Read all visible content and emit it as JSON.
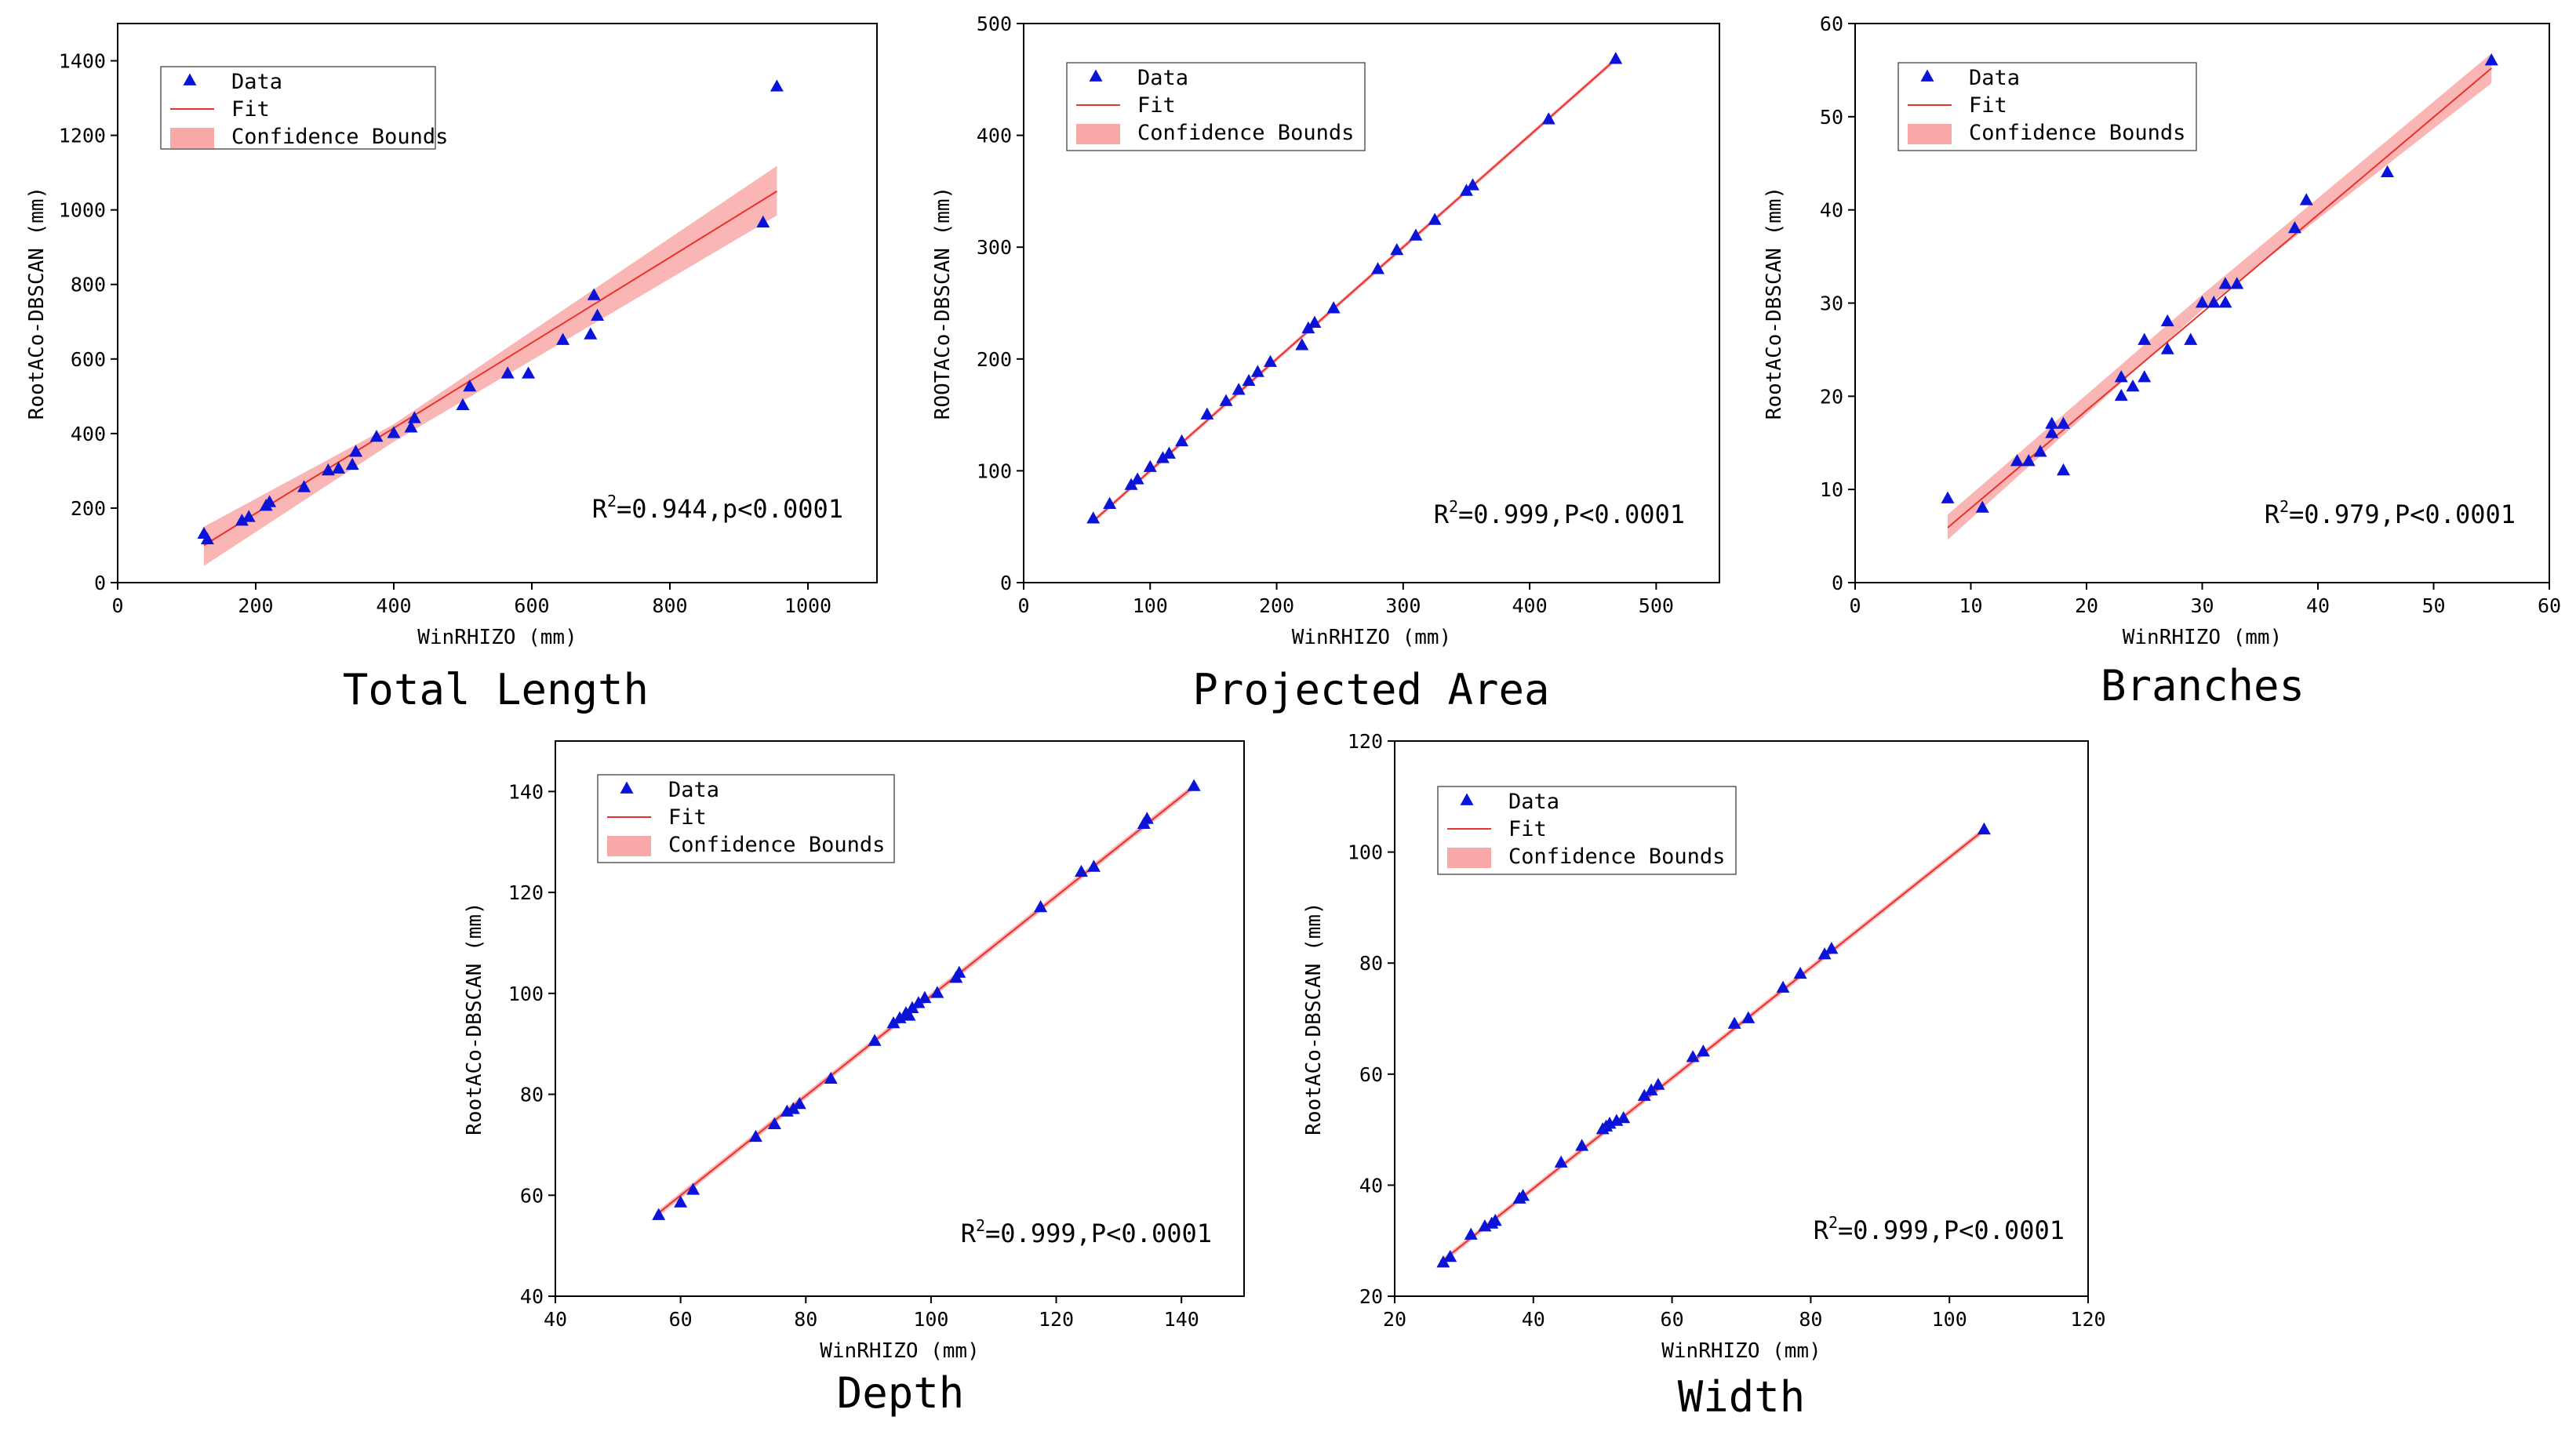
{
  "colors": {
    "marker": "#0a14d8",
    "fit": "#e8322e",
    "band": "#f9a8a8",
    "axis": "#000000"
  },
  "legend": {
    "data": "Data",
    "fit": "Fit",
    "bounds": "Confidence Bounds"
  },
  "chart_data": [
    {
      "type": "scatter",
      "title": "Total Length",
      "xlabel": "WinRHIZO (mm)",
      "ylabel": "RootACo-DBSCAN (mm)",
      "xlim": [
        0,
        1100
      ],
      "ylim": [
        0,
        1500
      ],
      "xticks": [
        0,
        200,
        400,
        600,
        800,
        1000
      ],
      "yticks": [
        0,
        200,
        400,
        600,
        800,
        1000,
        1200,
        1400
      ],
      "stat": {
        "prefix": "R",
        "sup": "2",
        "rest": "=0.944,p<0.0001"
      },
      "fit": {
        "x": [
          125,
          955
        ],
        "y": [
          100,
          1050
        ]
      },
      "band": {
        "x": [
          125,
          400,
          955
        ],
        "upper": [
          150,
          425,
          1118
        ],
        "lower": [
          45,
          378,
          985
        ]
      },
      "x": [
        125,
        130,
        180,
        190,
        215,
        220,
        270,
        305,
        320,
        340,
        345,
        375,
        400,
        425,
        430,
        500,
        510,
        565,
        595,
        645,
        685,
        690,
        695,
        935,
        955
      ],
      "y": [
        130,
        115,
        165,
        175,
        205,
        215,
        255,
        300,
        305,
        315,
        350,
        390,
        400,
        415,
        440,
        475,
        525,
        560,
        560,
        650,
        665,
        770,
        715,
        965,
        1330
      ]
    },
    {
      "type": "scatter",
      "title": "Projected Area",
      "xlabel": "WinRHIZO (mm)",
      "ylabel": "ROOTACo-DBSCAN (mm)",
      "xlim": [
        0,
        550
      ],
      "ylim": [
        0,
        500
      ],
      "xticks": [
        0,
        100,
        200,
        300,
        400,
        500
      ],
      "yticks": [
        0,
        100,
        200,
        300,
        400,
        500
      ],
      "stat": {
        "prefix": "R",
        "sup": "2",
        "rest": "=0.999,P<0.0001"
      },
      "fit": {
        "x": [
          55,
          468
        ],
        "y": [
          55,
          468
        ]
      },
      "band": {
        "x": [
          55,
          468
        ],
        "upper": [
          57,
          470
        ],
        "lower": [
          53,
          466
        ]
      },
      "x": [
        55,
        68,
        85,
        90,
        100,
        110,
        115,
        125,
        145,
        160,
        170,
        178,
        185,
        195,
        220,
        225,
        230,
        245,
        280,
        295,
        310,
        325,
        350,
        355,
        415,
        468
      ],
      "y": [
        57,
        70,
        87,
        92,
        103,
        111,
        115,
        126,
        150,
        162,
        172,
        180,
        188,
        197,
        212,
        227,
        232,
        245,
        280,
        297,
        310,
        324,
        350,
        355,
        414,
        468
      ]
    },
    {
      "type": "scatter",
      "title": "Branches",
      "xlabel": "WinRHIZO (mm)",
      "ylabel": "RootACo-DBSCAN (mm)",
      "xlim": [
        0,
        60
      ],
      "ylim": [
        0,
        60
      ],
      "xticks": [
        0,
        10,
        20,
        30,
        40,
        50,
        60
      ],
      "yticks": [
        0,
        10,
        20,
        30,
        40,
        50,
        60
      ],
      "stat": {
        "prefix": "R",
        "sup": "2",
        "rest": "=0.979,P<0.0001"
      },
      "fit": {
        "x": [
          8,
          55
        ],
        "y": [
          5.9,
          55.2
        ]
      },
      "band": {
        "x": [
          8,
          30,
          55
        ],
        "upper": [
          7.3,
          30.9,
          56.8
        ],
        "lower": [
          4.6,
          29.3,
          53.6
        ]
      },
      "x": [
        8,
        11,
        14,
        15,
        16,
        17,
        17,
        18,
        18,
        23,
        23,
        24,
        25,
        25,
        27,
        27,
        29,
        30,
        31,
        32,
        32,
        33,
        38,
        39,
        46,
        55
      ],
      "y": [
        9,
        8,
        13,
        13,
        14,
        16,
        17,
        17,
        12,
        20,
        22,
        21,
        22,
        26,
        25,
        28,
        26,
        30,
        30,
        30,
        32,
        32,
        38,
        41,
        44,
        56
      ]
    },
    {
      "type": "scatter",
      "title": "Depth",
      "xlabel": "WinRHIZO (mm)",
      "ylabel": "RootACo-DBSCAN (mm)",
      "xlim": [
        40,
        150
      ],
      "ylim": [
        40,
        150
      ],
      "xticks": [
        40,
        60,
        80,
        100,
        120,
        140
      ],
      "yticks": [
        40,
        60,
        80,
        100,
        120,
        140
      ],
      "stat": {
        "prefix": "R",
        "sup": "2",
        "rest": "=0.999,P<0.0001"
      },
      "fit": {
        "x": [
          56,
          142
        ],
        "y": [
          56,
          141
        ]
      },
      "band": {
        "x": [
          56,
          142
        ],
        "upper": [
          56.6,
          141.6
        ],
        "lower": [
          55.4,
          140.4
        ]
      },
      "x": [
        56.5,
        60,
        62,
        72,
        75,
        77,
        78,
        79,
        84,
        91,
        94,
        95,
        96,
        96.5,
        97,
        98,
        99,
        101,
        104,
        104.5,
        117.5,
        124,
        126,
        134,
        134.5,
        142
      ],
      "y": [
        56,
        58.5,
        61,
        71.5,
        74,
        76.5,
        77,
        78,
        83,
        90.5,
        94,
        95,
        96,
        95.5,
        97,
        98,
        99,
        100,
        103,
        104,
        117,
        124,
        125,
        133.5,
        134.5,
        141
      ]
    },
    {
      "type": "scatter",
      "title": "Width",
      "xlabel": "WinRHIZO (mm)",
      "ylabel": "RootACo-DBSCAN (mm)",
      "xlim": [
        20,
        120
      ],
      "ylim": [
        20,
        120
      ],
      "xticks": [
        20,
        40,
        60,
        80,
        100,
        120
      ],
      "yticks": [
        20,
        40,
        60,
        80,
        100,
        120
      ],
      "stat": {
        "prefix": "R",
        "sup": "2",
        "rest": "=0.999,P<0.0001"
      },
      "fit": {
        "x": [
          26.5,
          105
        ],
        "y": [
          26,
          104
        ]
      },
      "band": {
        "x": [
          26.5,
          105
        ],
        "upper": [
          26.5,
          104.5
        ],
        "lower": [
          25.5,
          103.5
        ]
      },
      "x": [
        27,
        28,
        31,
        33,
        34,
        34.5,
        38,
        38.5,
        44,
        47,
        50,
        50.5,
        51,
        52,
        53,
        56,
        57,
        58,
        63,
        64.5,
        69,
        71,
        76,
        78.5,
        82,
        83,
        105
      ],
      "y": [
        26,
        27,
        31,
        32.5,
        33,
        33.5,
        37.5,
        38,
        44,
        47,
        50,
        50.5,
        51,
        51.5,
        52,
        56,
        57,
        58,
        63,
        64,
        69,
        70,
        75.5,
        78,
        81.5,
        82.5,
        104
      ]
    }
  ]
}
